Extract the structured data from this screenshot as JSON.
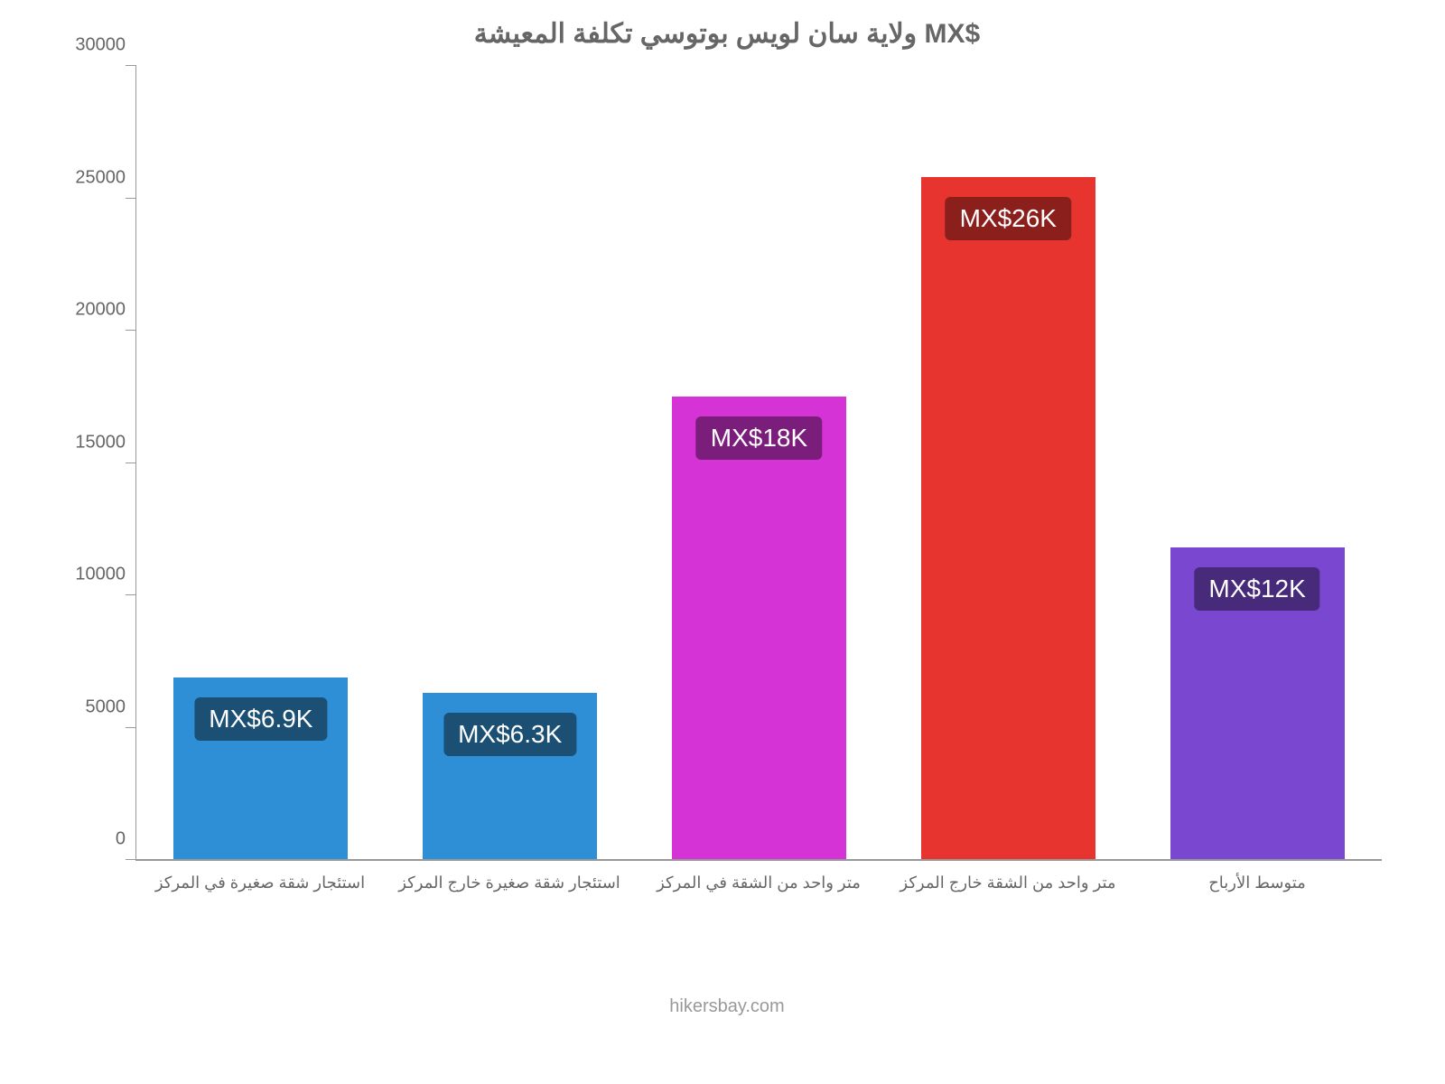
{
  "chart": {
    "type": "bar",
    "title": "ولاية سان لويس بوتوسي تكلفة المعيشة MX$",
    "title_color": "#666666",
    "title_fontsize": 30,
    "background_color": "#ffffff",
    "axis_color": "#999999",
    "label_color": "#666666",
    "y": {
      "min": 0,
      "max": 30000,
      "step": 5000,
      "ticks": [
        0,
        5000,
        10000,
        15000,
        20000,
        25000,
        30000
      ]
    },
    "categories": [
      "استئجار شقة صغيرة في المركز",
      "استئجار شقة صغيرة خارج المركز",
      "متر واحد من الشقة في المركز",
      "متر واحد من الشقة خارج المركز",
      "متوسط الأرباح"
    ],
    "values": [
      6900,
      6300,
      17500,
      25800,
      11800
    ],
    "value_labels": [
      "MX$6.9K",
      "MX$6.3K",
      "MX$18K",
      "MX$26K",
      "MX$12K"
    ],
    "bar_colors": [
      "#2f8fd6",
      "#2f8fd6",
      "#d633d6",
      "#e8342f",
      "#7a47d1"
    ],
    "badge_colors": [
      "#1b5074",
      "#1b5074",
      "#7b1d7b",
      "#8a1f1c",
      "#472a7a"
    ],
    "badge_text_color": "#ffffff",
    "bar_width": 0.7,
    "credit": "hikersbay.com",
    "credit_color": "#999999"
  }
}
